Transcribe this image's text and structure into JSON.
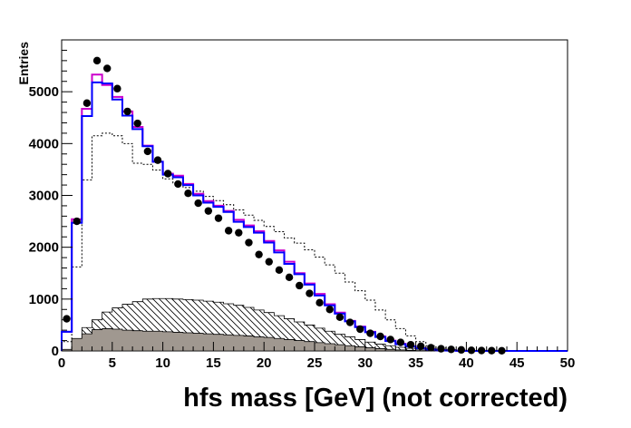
{
  "chart_data": {
    "type": "histogram",
    "xlabel": "hfs mass [GeV] (not corrected)",
    "ylabel": "Entries",
    "xlim": [
      0,
      50
    ],
    "ylim": [
      0,
      6000
    ],
    "x_ticks": [
      "0",
      "5",
      "10",
      "15",
      "20",
      "25",
      "30",
      "35",
      "40",
      "45",
      "50"
    ],
    "y_ticks": [
      "0",
      "1000",
      "2000",
      "3000",
      "4000",
      "5000"
    ],
    "grid": false,
    "bin_width": 1,
    "bin_low_edges": [
      0,
      1,
      2,
      3,
      4,
      5,
      6,
      7,
      8,
      9,
      10,
      11,
      12,
      13,
      14,
      15,
      16,
      17,
      18,
      19,
      20,
      21,
      22,
      23,
      24,
      25,
      26,
      27,
      28,
      29,
      30,
      31,
      32,
      33,
      34,
      35,
      36,
      37,
      38,
      39,
      40,
      41,
      42,
      43,
      44,
      45,
      46,
      47,
      48,
      49
    ],
    "series": [
      {
        "style": "hatched-fill",
        "color": "#000000",
        "values": [
          0,
          200,
          450,
          600,
          750,
          830,
          900,
          950,
          1000,
          1010,
          1010,
          1000,
          990,
          980,
          960,
          940,
          910,
          880,
          840,
          790,
          740,
          680,
          620,
          560,
          500,
          440,
          380,
          320,
          270,
          220,
          170,
          130,
          100,
          70,
          50,
          30,
          20,
          10,
          5,
          0,
          0,
          0,
          0,
          0,
          0,
          0,
          0,
          0,
          0,
          0
        ]
      },
      {
        "style": "solid-fill",
        "color": "#a09890",
        "values": [
          30,
          240,
          330,
          410,
          430,
          420,
          400,
          390,
          380,
          380,
          370,
          360,
          350,
          340,
          330,
          320,
          310,
          300,
          290,
          270,
          260,
          240,
          220,
          200,
          180,
          160,
          140,
          120,
          100,
          80,
          60,
          45,
          30,
          20,
          12,
          6,
          3,
          1,
          0,
          0,
          0,
          0,
          0,
          0,
          0,
          0,
          0,
          0,
          0,
          0
        ]
      },
      {
        "style": "dotted-line",
        "color": "#000000",
        "values": [
          180,
          1620,
          3300,
          4150,
          4200,
          4150,
          4000,
          3620,
          3600,
          3490,
          3320,
          3240,
          3150,
          3080,
          2980,
          2900,
          2820,
          2720,
          2620,
          2520,
          2400,
          2300,
          2180,
          2080,
          1950,
          1810,
          1660,
          1500,
          1330,
          1160,
          980,
          790,
          600,
          430,
          290,
          180,
          100,
          55,
          25,
          10,
          5,
          0,
          0,
          0,
          0,
          0,
          0,
          0,
          0,
          0
        ]
      },
      {
        "style": "step-line",
        "color": "#cc00cc",
        "values": [
          370,
          2540,
          4670,
          5330,
          5130,
          4900,
          4620,
          4320,
          3960,
          3650,
          3420,
          3380,
          3220,
          3030,
          2890,
          2800,
          2700,
          2530,
          2420,
          2310,
          2120,
          1940,
          1720,
          1500,
          1300,
          1100,
          900,
          740,
          580,
          470,
          370,
          280,
          200,
          140,
          90,
          55,
          30,
          15,
          8,
          3,
          0,
          0,
          0,
          0,
          0,
          0,
          0,
          0,
          0,
          0
        ]
      },
      {
        "style": "step-line",
        "color": "#0000ff",
        "values": [
          370,
          2470,
          4530,
          5180,
          5160,
          4850,
          4540,
          4280,
          3950,
          3650,
          3400,
          3350,
          3200,
          3000,
          2860,
          2780,
          2680,
          2490,
          2390,
          2280,
          2090,
          1900,
          1680,
          1480,
          1280,
          1070,
          880,
          720,
          570,
          460,
          360,
          270,
          190,
          130,
          85,
          50,
          28,
          14,
          7,
          3,
          0,
          0,
          0,
          0,
          0,
          0,
          0,
          0,
          0,
          0
        ]
      },
      {
        "style": "markers",
        "color": "#000000",
        "x": [
          0.5,
          1.5,
          2.5,
          3.5,
          4.5,
          5.5,
          6.5,
          7.5,
          8.5,
          9.5,
          10.5,
          11.5,
          12.5,
          13.5,
          14.5,
          15.5,
          16.5,
          17.5,
          18.5,
          19.5,
          20.5,
          21.5,
          22.5,
          23.5,
          24.5,
          25.5,
          26.5,
          27.5,
          28.5,
          29.5,
          30.5,
          31.5,
          32.5,
          33.5,
          34.5,
          35.5,
          36.5,
          37.5,
          38.5,
          39.5,
          40.5,
          41.5,
          42.5,
          43.5
        ],
        "values": [
          620,
          2500,
          4780,
          5600,
          5450,
          5060,
          4620,
          4390,
          3850,
          3680,
          3420,
          3220,
          3040,
          2850,
          2700,
          2560,
          2320,
          2280,
          2090,
          1860,
          1720,
          1560,
          1420,
          1260,
          1110,
          930,
          800,
          650,
          550,
          420,
          340,
          280,
          220,
          165,
          120,
          90,
          62,
          42,
          30,
          20,
          12,
          8,
          5,
          3
        ]
      }
    ]
  }
}
